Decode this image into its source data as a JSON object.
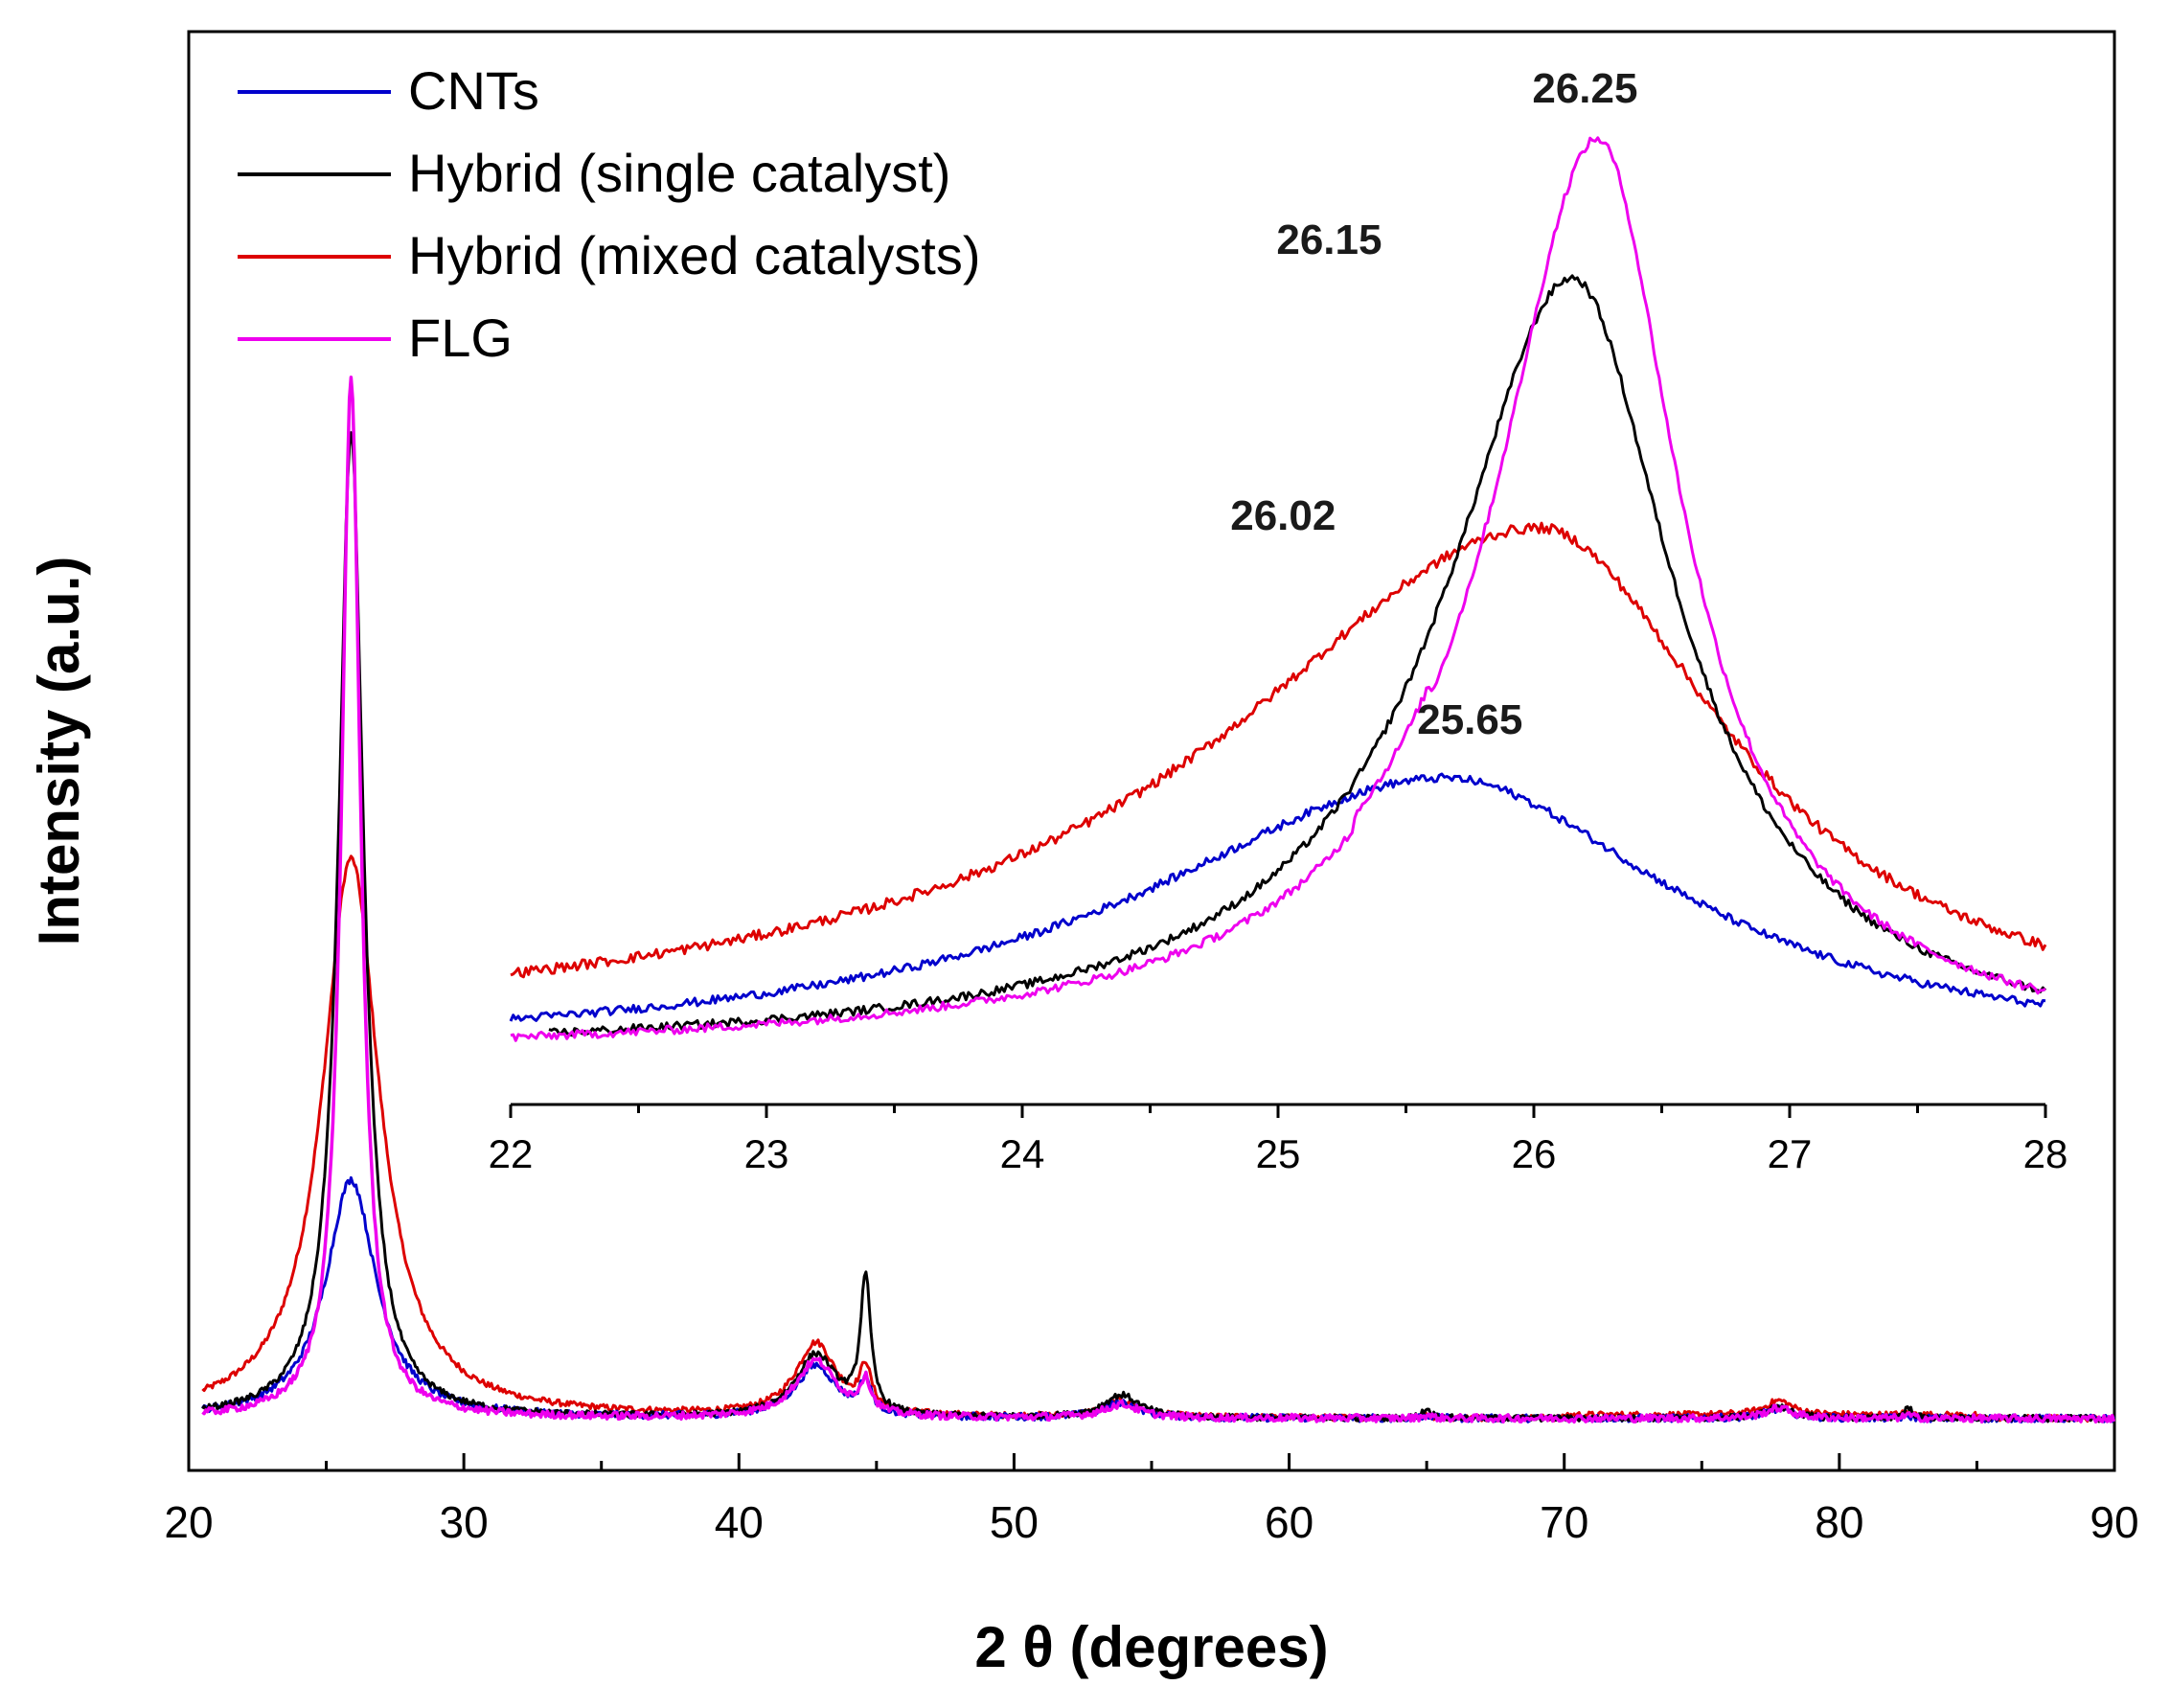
{
  "chart_data": [
    {
      "type": "line",
      "title": "",
      "xlabel": "2 θ (degrees)",
      "ylabel": "Intensity (a.u.)",
      "xlim": [
        20,
        90
      ],
      "ylim": [
        0,
        100
      ],
      "x_ticks": [
        20,
        30,
        40,
        50,
        60,
        70,
        80,
        90
      ],
      "y_ticks_shown": false,
      "grid": false,
      "legend_position": "top-left",
      "peaks": [
        {
          "center": 25.9,
          "main": [
            23,
            95,
            54,
            100
          ]
        },
        {
          "center": 42.8,
          "main": [
            5,
            6,
            7,
            5.5
          ]
        },
        {
          "center": 44.6,
          "main": [
            3,
            13,
            4,
            3
          ]
        },
        {
          "center": 53.9,
          "main": [
            1.5,
            2.2,
            1.6,
            1.3
          ]
        },
        {
          "center": 65.0,
          "main": [
            0.3,
            0.9,
            0.3,
            0.3
          ]
        },
        {
          "center": 77.8,
          "main": [
            0.9,
            1.1,
            1.4,
            1.0
          ]
        },
        {
          "center": 82.5,
          "main": [
            0.2,
            1.0,
            0.3,
            0.3
          ]
        }
      ],
      "series": [
        {
          "name": "CNTs",
          "color": "#0000cc"
        },
        {
          "name": "Hybrid (single catalyst)",
          "color": "#000000"
        },
        {
          "name": "Hybrid (mixed catalysts)",
          "color": "#dd0000"
        },
        {
          "name": "FLG",
          "color": "#ee00ee"
        }
      ]
    },
    {
      "type": "line",
      "title": "",
      "note": "inset",
      "xlabel": "",
      "ylabel": "",
      "xlim": [
        22,
        28
      ],
      "ylim": [
        0,
        100
      ],
      "x_ticks": [
        22,
        23,
        24,
        25,
        26,
        27,
        28
      ],
      "series": [
        {
          "name": "CNTs",
          "color": "#0000cc",
          "peak_x": 25.65,
          "peak_label": "25.65",
          "peak_height": 31,
          "baseline": 0.5,
          "tail_end": 1.5
        },
        {
          "name": "Hybrid (single catalyst)",
          "color": "#000000",
          "peak_x": 26.15,
          "peak_label": "26.15",
          "peak_height": 85,
          "baseline": 0.3,
          "tail_end": 0.5
        },
        {
          "name": "Hybrid (mixed catalysts)",
          "color": "#dd0000",
          "peak_x": 26.02,
          "peak_label": "26.02",
          "peak_height": 58,
          "baseline": 1.8,
          "tail_end": 4.0
        },
        {
          "name": "FLG",
          "color": "#ee00ee",
          "peak_x": 26.25,
          "peak_label": "26.25",
          "peak_height": 100,
          "baseline": 0.0,
          "tail_end": 0.3
        }
      ]
    }
  ]
}
